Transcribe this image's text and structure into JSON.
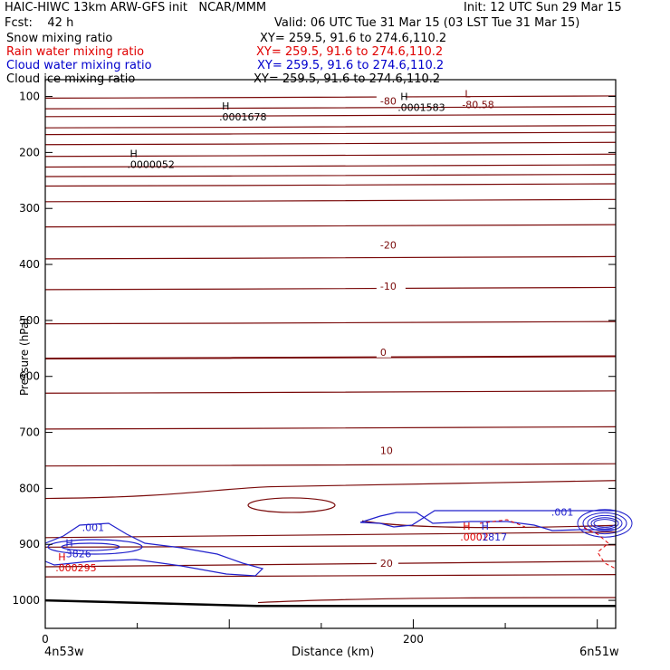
{
  "header": {
    "title_left": "HAIC-HIWC 13km ARW-GFS init   NCAR/MMM",
    "init": "Init: 12 UTC Sun 29 Mar 15",
    "fcst": "Fcst:    42 h",
    "valid": "Valid: 06 UTC Tue 31 Mar 15 (03 LST Tue 31 Mar 15)"
  },
  "legend": [
    {
      "name": "Snow mixing ratio",
      "xy": "XY= 259.5, 91.6 to 274.6,110.2",
      "color": "#000000"
    },
    {
      "name": "Rain water mixing ratio",
      "xy": "XY= 259.5, 91.6 to 274.6,110.2",
      "color": "#e00000"
    },
    {
      "name": "Cloud water mixing ratio",
      "xy": "XY= 259.5, 91.6 to 274.6,110.2",
      "color": "#0000cc"
    },
    {
      "name": "Cloud ice mixing ratio",
      "xy": "XY= 259.5, 91.6 to 274.6,110.2",
      "color": "#000000"
    }
  ],
  "colors": {
    "temperature": "#7a0a0a",
    "rain": "#e00000",
    "cloud_water": "#2020cc",
    "text": "#000000"
  },
  "chart_data": {
    "type": "line",
    "xlabel": "Distance (km)",
    "ylabel": "Pressure (hPa)",
    "xlim": [
      0,
      310
    ],
    "ylim": [
      1050,
      70
    ],
    "x_ticks": [
      0,
      200
    ],
    "y_ticks": [
      100,
      200,
      300,
      400,
      500,
      600,
      700,
      800,
      900,
      1000
    ],
    "x_endpoints": [
      "4n53w",
      "6n51w"
    ],
    "isotherm_labels": [
      {
        "text": "-80",
        "x": 182,
        "p": 110
      },
      {
        "text": "-20",
        "x": 182,
        "p": 367
      },
      {
        "text": "-10",
        "x": 182,
        "p": 440
      },
      {
        "text": "0",
        "x": 182,
        "p": 558
      },
      {
        "text": "10",
        "x": 182,
        "p": 734
      },
      {
        "text": "20",
        "x": 182,
        "p": 935
      }
    ],
    "isotherm_levels_hpa": [
      103,
      122,
      136,
      156,
      168,
      186,
      207,
      226,
      243,
      260,
      288,
      333,
      390,
      445,
      506,
      568,
      630,
      694,
      760,
      905,
      958
    ],
    "surface_pressure": [
      {
        "x": 0,
        "p": 1000
      },
      {
        "x": 115,
        "p": 1010
      },
      {
        "x": 310,
        "p": 1010
      }
    ],
    "extrema": [
      {
        "kind": "H",
        "value": ".0001678",
        "x": 95,
        "p": 130,
        "series": "Snow mixing ratio"
      },
      {
        "kind": "H",
        "value": ".0000052",
        "x": 45,
        "p": 215,
        "series": "Snow mixing ratio"
      },
      {
        "kind": "H",
        "value": ".0001583",
        "x": 192,
        "p": 113,
        "series": "Cloud ice mixing ratio"
      },
      {
        "kind": "L",
        "value": "-80.58",
        "x": 227,
        "p": 108,
        "series": "Temperature"
      },
      {
        "kind": "H",
        "value": ".3826",
        "x": 10,
        "p": 910,
        "series": "Cloud water mixing ratio"
      },
      {
        "kind": "H",
        "value": ".000295",
        "x": 6,
        "p": 935,
        "series": "Rain water mixing ratio"
      },
      {
        "kind": "H",
        "value": ".0002",
        "x": 226,
        "p": 880,
        "series": "Rain water mixing ratio"
      },
      {
        "kind": "H",
        "value": ".1817",
        "x": 236,
        "p": 880,
        "series": "Cloud water mixing ratio"
      }
    ],
    "cloud_water_labels": [
      {
        "text": ".001",
        "x": 20,
        "p": 870
      },
      {
        "text": ".001",
        "x": 275,
        "p": 842
      }
    ]
  }
}
